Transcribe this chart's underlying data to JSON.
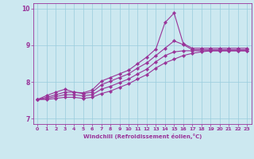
{
  "xlabel": "Windchill (Refroidissement éolien,°C)",
  "xlim": [
    -0.5,
    23.5
  ],
  "ylim": [
    6.85,
    10.15
  ],
  "yticks": [
    7,
    8,
    9,
    10
  ],
  "xticks": [
    0,
    1,
    2,
    3,
    4,
    5,
    6,
    7,
    8,
    9,
    10,
    11,
    12,
    13,
    14,
    15,
    16,
    17,
    18,
    19,
    20,
    21,
    22,
    23
  ],
  "bg_color": "#cce8f0",
  "line_color": "#993399",
  "grid_color": "#99ccdd",
  "lines": [
    [
      7.52,
      7.63,
      7.72,
      7.8,
      7.72,
      7.7,
      7.78,
      8.02,
      8.12,
      8.22,
      8.32,
      8.5,
      8.68,
      8.9,
      9.62,
      9.88,
      9.05,
      8.92,
      8.92,
      8.92,
      8.92,
      8.92,
      8.92,
      8.92
    ],
    [
      7.52,
      7.58,
      7.65,
      7.72,
      7.72,
      7.68,
      7.72,
      7.92,
      8.02,
      8.12,
      8.22,
      8.38,
      8.52,
      8.72,
      8.92,
      9.12,
      9.02,
      8.88,
      8.88,
      8.88,
      8.88,
      8.88,
      8.88,
      8.88
    ],
    [
      7.52,
      7.55,
      7.6,
      7.65,
      7.65,
      7.62,
      7.65,
      7.8,
      7.88,
      7.98,
      8.08,
      8.22,
      8.35,
      8.55,
      8.72,
      8.82,
      8.85,
      8.85,
      8.85,
      8.85,
      8.85,
      8.85,
      8.85,
      8.85
    ],
    [
      7.52,
      7.52,
      7.55,
      7.58,
      7.58,
      7.55,
      7.58,
      7.68,
      7.75,
      7.85,
      7.95,
      8.08,
      8.2,
      8.38,
      8.52,
      8.62,
      8.72,
      8.78,
      8.82,
      8.85,
      8.85,
      8.85,
      8.85,
      8.85
    ]
  ]
}
